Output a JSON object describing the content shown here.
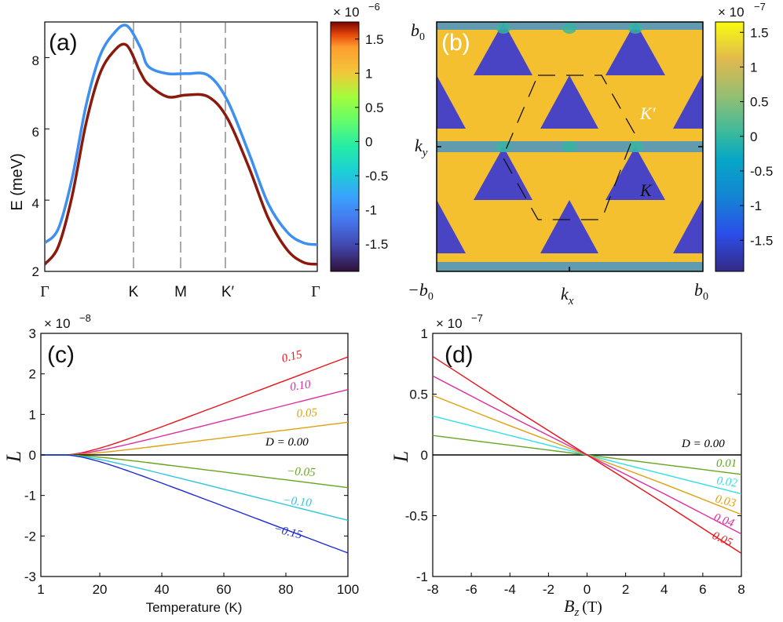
{
  "chart_data": [
    {
      "panel": "(a)",
      "type": "line",
      "ylabel": "E (meV)",
      "ylim": [
        2,
        9
      ],
      "yticks": [
        "2",
        "4",
        "6",
        "8"
      ],
      "xticks": [
        "Γ",
        "K",
        "M",
        "K′",
        "Γ"
      ],
      "series": [
        {
          "x": [
            0,
            0.05,
            0.1,
            0.15,
            0.2,
            0.25,
            0.3,
            0.35,
            0.38,
            0.45,
            0.52,
            0.6,
            0.67,
            0.75,
            0.82,
            0.89,
            0.95,
            1
          ],
          "values": [
            2.8,
            3.2,
            4.6,
            6.6,
            8.0,
            8.65,
            8.9,
            8.3,
            7.75,
            7.55,
            7.55,
            7.5,
            6.8,
            5.3,
            3.9,
            3.1,
            2.8,
            2.75
          ]
        },
        {
          "x": [
            0,
            0.05,
            0.1,
            0.15,
            0.2,
            0.25,
            0.3,
            0.35,
            0.38,
            0.45,
            0.52,
            0.6,
            0.67,
            0.75,
            0.82,
            0.89,
            0.95,
            1
          ],
          "values": [
            2.2,
            2.7,
            4.1,
            6.1,
            7.5,
            8.15,
            8.35,
            7.6,
            7.25,
            6.9,
            6.95,
            6.9,
            6.3,
            4.9,
            3.5,
            2.6,
            2.25,
            2.2
          ]
        }
      ],
      "colorbar": {
        "multiplier": "× 10",
        "exponent": "−6",
        "ticks": [
          "1.5",
          "1",
          "0.5",
          "0",
          "-0.5",
          "-1",
          "-1.5"
        ],
        "range": [
          -1.9,
          1.75
        ]
      }
    },
    {
      "panel": "(b)",
      "type": "heatmap",
      "xlabel": "k",
      "xlabel_sub": "x",
      "ylabel": "k",
      "ylabel_sub": "y",
      "xticks": [
        "−b",
        "b"
      ],
      "xtick_sub": "0",
      "yticks": [
        "b"
      ],
      "ytick_sub": "0",
      "point_labels": [
        "K′",
        "K"
      ],
      "colorbar": {
        "multiplier": "× 10",
        "exponent": "−7",
        "ticks": [
          "1.5",
          "1",
          "0.5",
          "0",
          "-0.5",
          "-1",
          "-1.5"
        ],
        "range": [
          -1.95,
          1.65
        ]
      }
    },
    {
      "panel": "(c)",
      "type": "line",
      "xlabel": "Temperature (K)",
      "ylabel": "L",
      "xlim": [
        1,
        100
      ],
      "ylim": [
        -3,
        3
      ],
      "xticks": [
        "1",
        "20",
        "40",
        "60",
        "80",
        "100"
      ],
      "yticks": [
        "3",
        "2",
        "1",
        "0",
        "-1",
        "-2",
        "-3"
      ],
      "multiplier": "× 10",
      "exponent": "−8",
      "series": [
        {
          "name": "0.15",
          "color": "#e8141a",
          "slope": 0.15
        },
        {
          "name": "0.10",
          "color": "#dc2f9e",
          "slope": 0.1
        },
        {
          "name": "0.05",
          "color": "#e0a010",
          "slope": 0.05
        },
        {
          "name": "D = 0.00",
          "color": "#000000",
          "slope": 0.0
        },
        {
          "name": "−0.05",
          "color": "#66a51e",
          "slope": -0.05
        },
        {
          "name": "−0.10",
          "color": "#2fc4dc",
          "slope": -0.1
        },
        {
          "name": "−0.15",
          "color": "#1f2ad6",
          "slope": -0.15
        }
      ]
    },
    {
      "panel": "(d)",
      "type": "line",
      "xlabel": "B",
      "xlabel_sub": "z",
      "xlabel_unit": "(T)",
      "ylabel": "L",
      "xlim": [
        -8,
        8
      ],
      "ylim": [
        -1,
        1
      ],
      "xticks": [
        "-8",
        "-6",
        "-4",
        "-2",
        "0",
        "2",
        "4",
        "6",
        "8"
      ],
      "yticks": [
        "1",
        "0.5",
        "0",
        "-0.5",
        "-1"
      ],
      "multiplier": "× 10",
      "exponent": "−7",
      "series": [
        {
          "name": "D = 0.00",
          "color": "#000000",
          "x": [
            -8,
            8
          ],
          "values": [
            0,
            0
          ]
        },
        {
          "name": "0.01",
          "color": "#66a51e",
          "x": [
            -8,
            -4,
            0,
            4,
            8
          ],
          "values": [
            0.16,
            0.08,
            0,
            -0.08,
            -0.16
          ]
        },
        {
          "name": "0.02",
          "color": "#2fe0e8",
          "x": [
            -8,
            -4,
            0,
            4,
            8
          ],
          "values": [
            0.32,
            0.16,
            0,
            -0.16,
            -0.32
          ]
        },
        {
          "name": "0.03",
          "color": "#e0a010",
          "x": [
            -8,
            -4,
            0,
            4,
            8
          ],
          "values": [
            0.49,
            0.24,
            0,
            -0.24,
            -0.49
          ]
        },
        {
          "name": "0.04",
          "color": "#dc2f9e",
          "x": [
            -8,
            -4,
            0,
            4,
            8
          ],
          "values": [
            0.65,
            0.32,
            0,
            -0.32,
            -0.65
          ]
        },
        {
          "name": "0.05",
          "color": "#e8141a",
          "x": [
            -8,
            -4,
            0,
            4,
            8
          ],
          "values": [
            0.81,
            0.4,
            0,
            -0.4,
            -0.81
          ]
        }
      ]
    }
  ]
}
